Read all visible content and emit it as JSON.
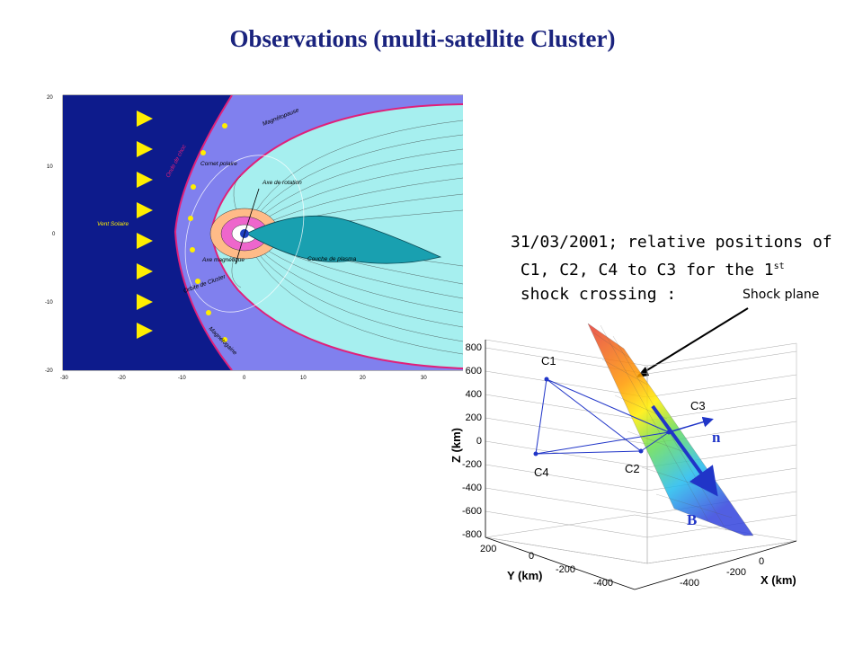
{
  "slide": {
    "title": "Observations (multi-satellite Cluster)"
  },
  "magnetosphere_figure": {
    "labels": {
      "vent_solaire": "Vent Solaire",
      "onde_de_choc": "Onde de choc",
      "cornet_polaire": "Cornet polaire",
      "magnetopause": "Magnétopause",
      "axe_rotation": "Axe de rotation",
      "axe_magnetique": "Axe magnétique",
      "orbite_cluster": "Orbite de Cluster",
      "couche_plasma": "Couche de plasma",
      "magnetogaine": "Magnétogaine"
    },
    "x_ticks": [
      "-30",
      "-20",
      "-10",
      "0",
      "10",
      "20",
      "30"
    ],
    "y_ticks": [
      "20",
      "10",
      "0",
      "-10",
      "-20"
    ],
    "colors": {
      "solar_wind": "#0d1b8c",
      "magnetosheath": "#8080ee",
      "magnetosphere": "#a6efef",
      "boundary": "#e0207a",
      "arrows": "#ffee00"
    }
  },
  "caption": {
    "line1": "31/03/2001; relative positions of",
    "line2": "C1, C2, C4 to C3 for the 1",
    "line2_sup": "st",
    "line3": "shock crossing :"
  },
  "annotation": {
    "shock_plane": "Shock plane"
  },
  "plot3d": {
    "z_label": "Z (km)",
    "y_label": "Y (km)",
    "x_label": "X (km)",
    "z_ticks": [
      "800",
      "600",
      "400",
      "200",
      "0",
      "-200",
      "-400",
      "-600",
      "-800"
    ],
    "y_ticks": [
      "200",
      "0",
      "-200",
      "-400"
    ],
    "x_ticks": [
      "0",
      "-200",
      "-400"
    ],
    "satellites": {
      "c1": "C1",
      "c2": "C2",
      "c3": "C3",
      "c4": "C4"
    },
    "vectors": {
      "n": "n",
      "b": "B"
    }
  }
}
